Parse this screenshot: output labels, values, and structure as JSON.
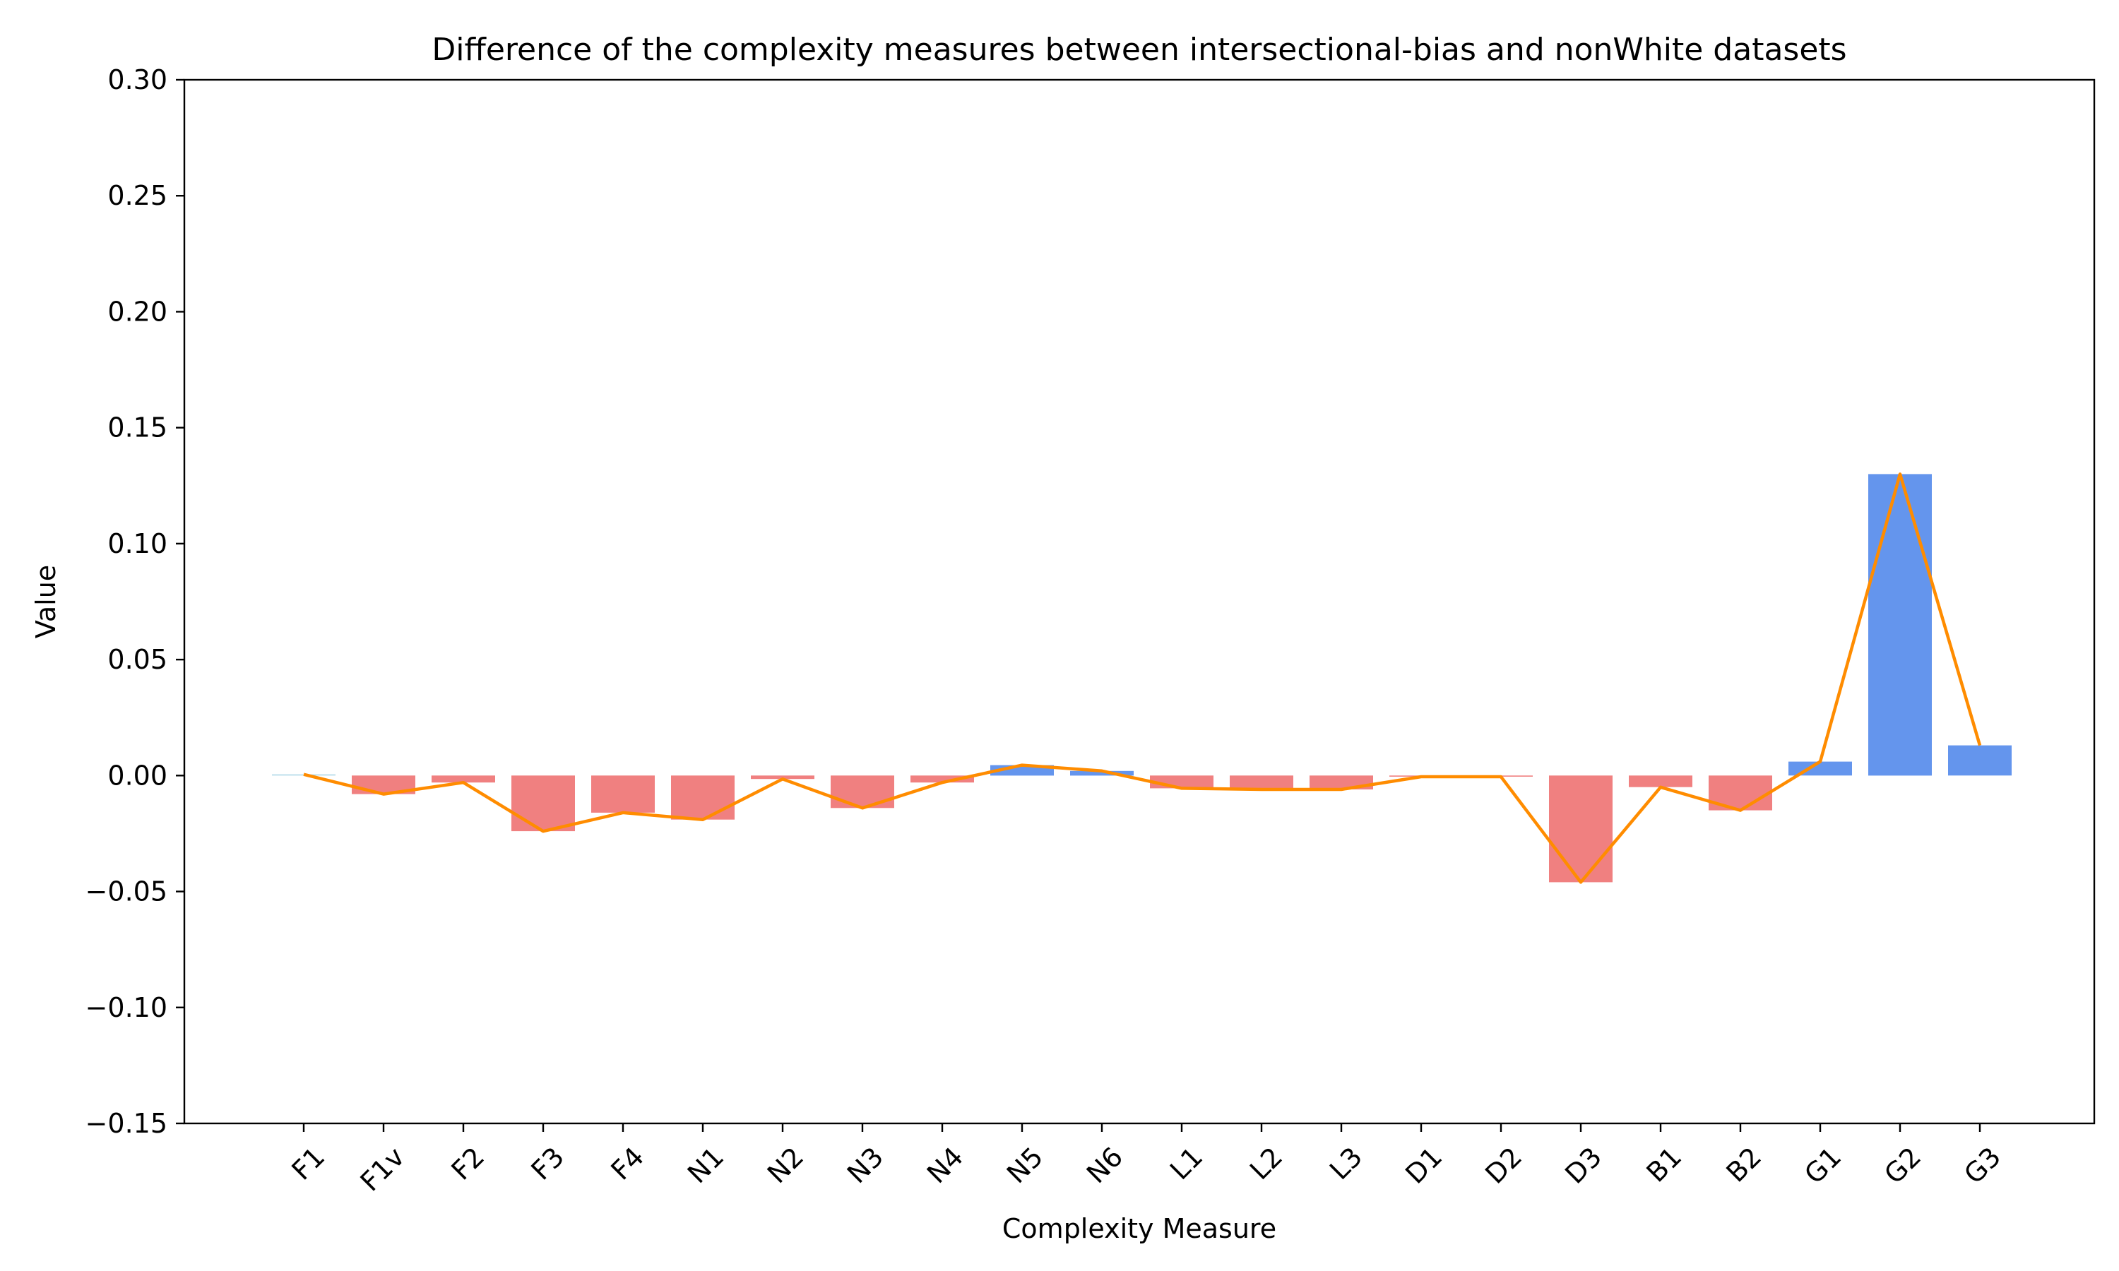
{
  "chart_data": {
    "type": "bar",
    "title": "Difference of the complexity measures between intersectional-bias and nonWhite datasets",
    "xlabel": "Complexity Measure",
    "ylabel": "Value",
    "ylim": [
      -0.15,
      0.3
    ],
    "yticks": [
      -0.15,
      -0.1,
      -0.05,
      0.0,
      0.05,
      0.1,
      0.15,
      0.2,
      0.25,
      0.3
    ],
    "ytick_labels": [
      "−0.15",
      "−0.10",
      "−0.05",
      "0.00",
      "0.05",
      "0.10",
      "0.15",
      "0.20",
      "0.25",
      "0.30"
    ],
    "grid": false,
    "legend": "none",
    "categories": [
      "F1",
      "F1v",
      "F2",
      "F3",
      "F4",
      "N1",
      "N2",
      "N3",
      "N4",
      "N5",
      "N6",
      "L1",
      "L2",
      "L3",
      "D1",
      "D2",
      "D3",
      "B1",
      "B2",
      "G1",
      "G2",
      "G3"
    ],
    "values": [
      0.0005,
      -0.008,
      -0.003,
      -0.024,
      -0.016,
      -0.019,
      -0.0015,
      -0.014,
      -0.003,
      0.0045,
      0.002,
      -0.0055,
      -0.006,
      -0.006,
      -0.0005,
      -0.0005,
      -0.046,
      -0.005,
      -0.015,
      0.006,
      0.13,
      0.013
    ],
    "series": [
      {
        "type": "bar",
        "values": [
          0.0005,
          -0.008,
          -0.003,
          -0.024,
          -0.016,
          -0.019,
          -0.0015,
          -0.014,
          -0.003,
          0.0045,
          0.002,
          -0.0055,
          -0.006,
          -0.006,
          -0.0005,
          -0.0005,
          -0.046,
          -0.005,
          -0.015,
          0.006,
          0.13,
          0.013
        ]
      },
      {
        "type": "line",
        "values": [
          0.0005,
          -0.008,
          -0.003,
          -0.024,
          -0.016,
          -0.019,
          -0.0015,
          -0.014,
          -0.003,
          0.0045,
          0.002,
          -0.0055,
          -0.006,
          -0.006,
          -0.0005,
          -0.0005,
          -0.046,
          -0.005,
          -0.015,
          0.006,
          0.13,
          0.013
        ]
      }
    ],
    "colors": {
      "positive_bar": "#6495ed",
      "first_bar": "#add8e6",
      "negative_bar": "#f08080",
      "line": "#ff8c00",
      "axis": "#000000"
    }
  }
}
